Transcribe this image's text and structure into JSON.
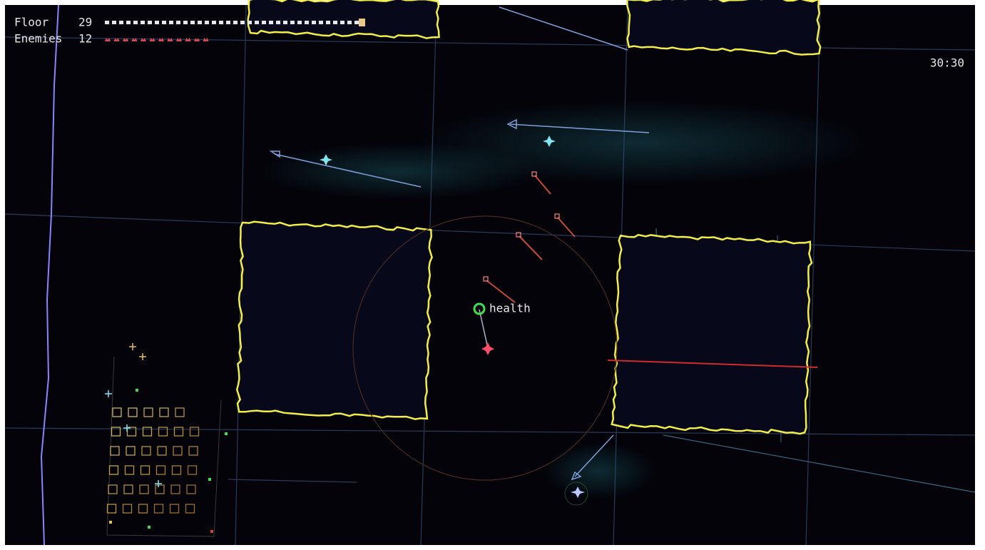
{
  "hud": {
    "floor_label": "Floor",
    "floor": 29,
    "enemies_label": "Enemies",
    "enemies": 12,
    "timer": "30:30"
  },
  "world": {
    "pickup_label": "health"
  }
}
